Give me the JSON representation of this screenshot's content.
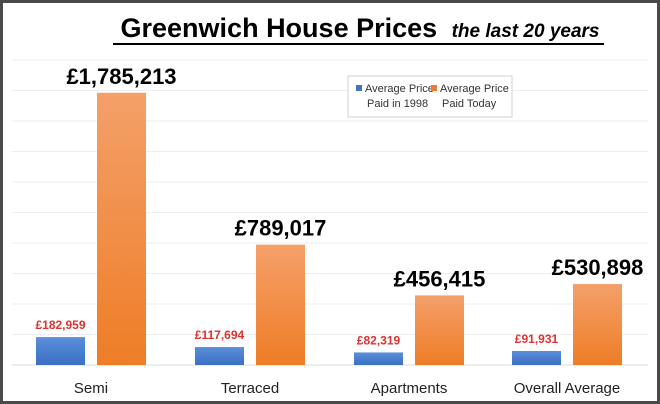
{
  "chart_data": {
    "type": "bar",
    "title": "Greenwich House Prices",
    "subtitle": "the last 20 years",
    "categories": [
      "Semi",
      "Terraced",
      "Apartments",
      "Overall Average"
    ],
    "series": [
      {
        "name": "Average Price Paid in 1998",
        "legend_lines": [
          "Average Price",
          "Paid in 1998"
        ],
        "color": "#4472c4",
        "values": [
          182959,
          117694,
          82319,
          91931
        ],
        "labels": [
          "£182,959",
          "£117,694",
          "£82,319",
          "£91,931"
        ],
        "label_color": "#e03030"
      },
      {
        "name": "Average Price Paid Today",
        "legend_lines": [
          "Average Price",
          "Paid Today"
        ],
        "color": "#ed7d31",
        "values": [
          1785213,
          789017,
          456415,
          530898
        ],
        "labels": [
          "£1,785,213",
          "£789,017",
          "£456,415",
          "£530,898"
        ],
        "label_color": "#000000"
      }
    ],
    "xlabel": "",
    "ylabel": "",
    "ylim": [
      0,
      2000000
    ],
    "grid": true,
    "gridline_step": 200000,
    "legend_position": "top-right"
  }
}
